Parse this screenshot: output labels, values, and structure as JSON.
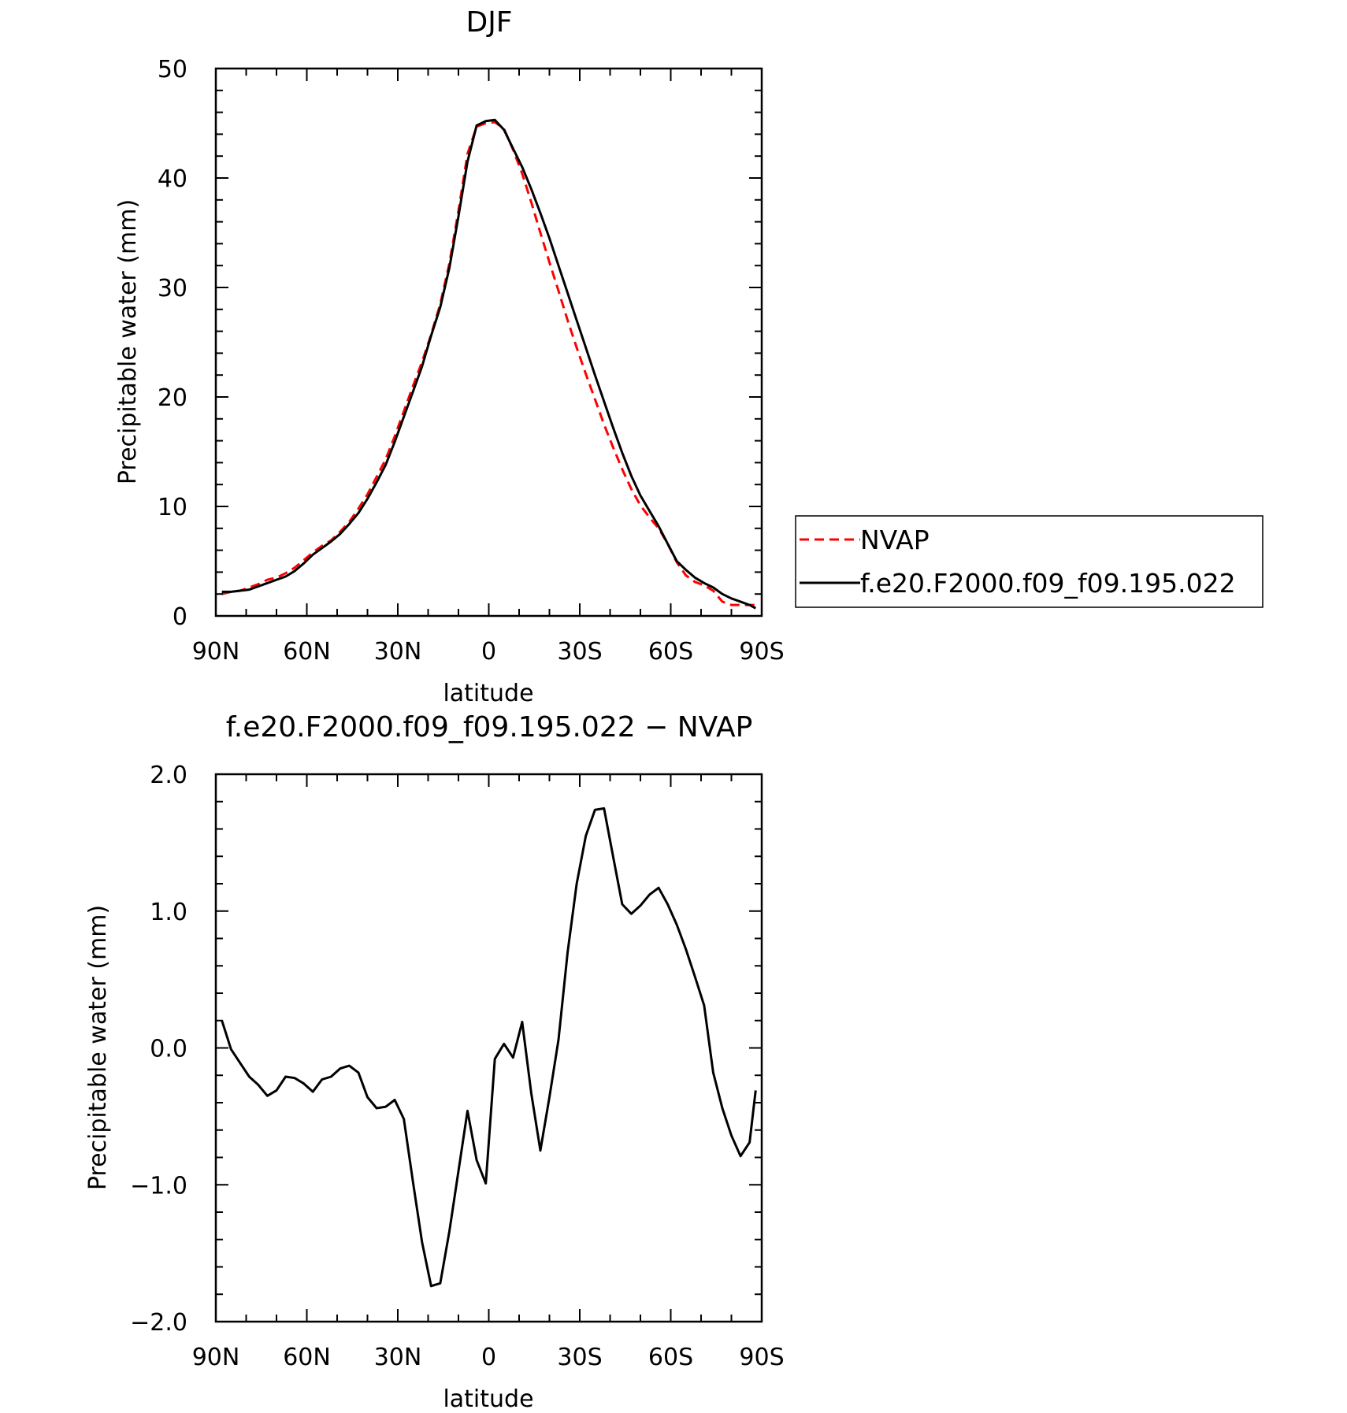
{
  "chart_data": [
    {
      "type": "line",
      "title": "DJF",
      "xlabel": "latitude",
      "ylabel": "Precipitable water (mm)",
      "xlim": [
        90,
        -90
      ],
      "ylim": [
        0,
        50
      ],
      "x_ticks": [
        {
          "value": 90,
          "label": "90N"
        },
        {
          "value": 60,
          "label": "60N"
        },
        {
          "value": 30,
          "label": "30N"
        },
        {
          "value": 0,
          "label": "0"
        },
        {
          "value": -30,
          "label": "30S"
        },
        {
          "value": -60,
          "label": "60S"
        },
        {
          "value": -90,
          "label": "90S"
        }
      ],
      "y_ticks": [
        {
          "value": 0,
          "label": "0"
        },
        {
          "value": 10,
          "label": "10"
        },
        {
          "value": 20,
          "label": "20"
        },
        {
          "value": 30,
          "label": "30"
        },
        {
          "value": 40,
          "label": "40"
        },
        {
          "value": 50,
          "label": "50"
        }
      ],
      "legend_position": "right",
      "series": [
        {
          "name": "NVAP",
          "color": "#ff0000",
          "dash": "dashed",
          "x": [
            88,
            85,
            82,
            79,
            76,
            73,
            70,
            67,
            64,
            61,
            58,
            55,
            52,
            49,
            46,
            43,
            40,
            37,
            34,
            31,
            28,
            25,
            22,
            19,
            16,
            13,
            10,
            7,
            4,
            1,
            -2,
            -5,
            -8,
            -11,
            -14,
            -17,
            -20,
            -23,
            -26,
            -29,
            -32,
            -35,
            -38,
            -41,
            -44,
            -47,
            -50,
            -53,
            -56,
            -59,
            -62,
            -65,
            -68,
            -71,
            -74,
            -77,
            -80,
            -83,
            -86,
            -88
          ],
          "y": [
            2.0,
            2.2,
            2.3,
            2.6,
            2.9,
            3.3,
            3.5,
            3.9,
            4.4,
            5.1,
            5.8,
            6.4,
            6.9,
            7.7,
            8.6,
            9.8,
            11.1,
            12.7,
            14.3,
            16.4,
            18.7,
            21.0,
            23.2,
            25.7,
            28.5,
            32.2,
            37.0,
            42.2,
            44.7,
            45.0,
            45.1,
            44.5,
            42.6,
            40.4,
            37.8,
            35.0,
            32.3,
            29.7,
            27.0,
            24.5,
            22.1,
            19.8,
            17.5,
            15.4,
            13.4,
            11.6,
            10.1,
            9.0,
            8.0,
            6.6,
            4.9,
            3.7,
            3.1,
            2.8,
            2.3,
            1.3,
            1.0,
            1.0,
            1.0,
            1.0
          ],
          "values": [
            2.0,
            2.2,
            2.3,
            2.6,
            2.9,
            3.3,
            3.5,
            3.9,
            4.4,
            5.1,
            5.8,
            6.4,
            6.9,
            7.7,
            8.6,
            9.8,
            11.1,
            12.7,
            14.3,
            16.4,
            18.7,
            21.0,
            23.2,
            25.7,
            28.5,
            32.2,
            37.0,
            42.2,
            44.7,
            45.0,
            45.1,
            44.5,
            42.6,
            40.4,
            37.8,
            35.0,
            32.3,
            29.7,
            27.0,
            24.5,
            22.1,
            19.8,
            17.5,
            15.4,
            13.4,
            11.6,
            10.1,
            9.0,
            8.0,
            6.6,
            4.9,
            3.7,
            3.1,
            2.8,
            2.3,
            1.3,
            1.0,
            1.0,
            1.0,
            1.0
          ]
        },
        {
          "name": "f.e20.F2000.f09_f09.195.022",
          "color": "#000000",
          "dash": "solid",
          "x": [
            88,
            85,
            82,
            79,
            76,
            73,
            70,
            67,
            64,
            61,
            58,
            55,
            52,
            49,
            46,
            43,
            40,
            37,
            34,
            31,
            28,
            25,
            22,
            19,
            16,
            13,
            10,
            7,
            4,
            1,
            -2,
            -5,
            -8,
            -11,
            -14,
            -17,
            -20,
            -23,
            -26,
            -29,
            -32,
            -35,
            -38,
            -41,
            -44,
            -47,
            -50,
            -53,
            -56,
            -59,
            -62,
            -65,
            -68,
            -71,
            -74,
            -77,
            -80,
            -83,
            -86,
            -88
          ],
          "y": [
            2.2,
            2.2,
            2.3,
            2.4,
            2.7,
            3.0,
            3.3,
            3.6,
            4.1,
            4.8,
            5.6,
            6.2,
            6.8,
            7.5,
            8.4,
            9.4,
            10.7,
            12.2,
            13.8,
            15.9,
            18.2,
            20.5,
            22.8,
            25.6,
            28.2,
            31.8,
            36.5,
            41.5,
            44.8,
            45.2,
            45.3,
            44.4,
            42.7,
            41.0,
            39.0,
            36.8,
            34.5,
            32.0,
            29.5,
            27.0,
            24.5,
            22.0,
            19.6,
            17.2,
            14.9,
            12.8,
            11.0,
            9.6,
            8.2,
            6.6,
            5.0,
            4.2,
            3.5,
            3.0,
            2.6,
            2.0,
            1.6,
            1.3,
            1.0,
            0.7
          ],
          "values": [
            2.2,
            2.2,
            2.3,
            2.4,
            2.7,
            3.0,
            3.3,
            3.6,
            4.1,
            4.8,
            5.6,
            6.2,
            6.8,
            7.5,
            8.4,
            9.4,
            10.7,
            12.2,
            13.8,
            15.9,
            18.2,
            20.5,
            22.8,
            25.6,
            28.2,
            31.8,
            36.5,
            41.5,
            44.8,
            45.2,
            45.3,
            44.4,
            42.7,
            41.0,
            39.0,
            36.8,
            34.5,
            32.0,
            29.5,
            27.0,
            24.5,
            22.0,
            19.6,
            17.2,
            14.9,
            12.8,
            11.0,
            9.6,
            8.2,
            6.6,
            5.0,
            4.2,
            3.5,
            3.0,
            2.6,
            2.0,
            1.6,
            1.3,
            1.0,
            0.7
          ]
        }
      ]
    },
    {
      "type": "line",
      "title": "f.e20.F2000.f09_f09.195.022 − NVAP",
      "xlabel": "latitude",
      "ylabel": "Precipitable water (mm)",
      "xlim": [
        90,
        -90
      ],
      "ylim": [
        -2.0,
        2.0
      ],
      "x_ticks": [
        {
          "value": 90,
          "label": "90N"
        },
        {
          "value": 60,
          "label": "60N"
        },
        {
          "value": 30,
          "label": "30N"
        },
        {
          "value": 0,
          "label": "0"
        },
        {
          "value": -30,
          "label": "30S"
        },
        {
          "value": -60,
          "label": "60S"
        },
        {
          "value": -90,
          "label": "90S"
        }
      ],
      "y_ticks": [
        {
          "value": -2.0,
          "label": "−2.0"
        },
        {
          "value": -1.0,
          "label": "−1.0"
        },
        {
          "value": 0.0,
          "label": "0.0"
        },
        {
          "value": 1.0,
          "label": "1.0"
        },
        {
          "value": 2.0,
          "label": "2.0"
        }
      ],
      "series": [
        {
          "color": "#000000",
          "dash": "solid",
          "x": [
            88,
            85,
            82,
            79,
            76,
            73,
            70,
            67,
            64,
            61,
            58,
            55,
            52,
            49,
            46,
            43,
            40,
            37,
            34,
            31,
            28,
            25,
            22,
            19,
            16,
            13,
            10,
            7,
            4,
            1,
            -2,
            -5,
            -8,
            -11,
            -14,
            -17,
            -20,
            -23,
            -26,
            -29,
            -32,
            -35,
            -38,
            -41,
            -44,
            -47,
            -50,
            -53,
            -56,
            -59,
            -62,
            -65,
            -68,
            -71,
            -74,
            -77,
            -80,
            -83,
            -86,
            -88
          ],
          "y": [
            0.2,
            -0.01,
            -0.11,
            -0.21,
            -0.27,
            -0.35,
            -0.31,
            -0.21,
            -0.22,
            -0.26,
            -0.32,
            -0.23,
            -0.21,
            -0.15,
            -0.13,
            -0.18,
            -0.36,
            -0.44,
            -0.43,
            -0.38,
            -0.52,
            -0.98,
            -1.42,
            -1.74,
            -1.72,
            -1.34,
            -0.9,
            -0.46,
            -0.82,
            -0.99,
            -0.08,
            0.03,
            -0.07,
            0.19,
            -0.33,
            -0.75,
            -0.36,
            0.06,
            0.7,
            1.2,
            1.55,
            1.74,
            1.75,
            1.4,
            1.05,
            0.98,
            1.04,
            1.12,
            1.17,
            1.05,
            0.9,
            0.72,
            0.52,
            0.31,
            -0.18,
            -0.44,
            -0.64,
            -0.79,
            -0.69,
            -0.31
          ],
          "values": [
            0.2,
            -0.01,
            -0.11,
            -0.21,
            -0.27,
            -0.35,
            -0.31,
            -0.21,
            -0.22,
            -0.26,
            -0.32,
            -0.23,
            -0.21,
            -0.15,
            -0.13,
            -0.18,
            -0.36,
            -0.44,
            -0.43,
            -0.38,
            -0.52,
            -0.98,
            -1.42,
            -1.74,
            -1.72,
            -1.34,
            -0.9,
            -0.46,
            -0.82,
            -0.99,
            -0.08,
            0.03,
            -0.07,
            0.19,
            -0.33,
            -0.75,
            -0.36,
            0.06,
            0.7,
            1.2,
            1.55,
            1.74,
            1.75,
            1.4,
            1.05,
            0.98,
            1.04,
            1.12,
            1.17,
            1.05,
            0.9,
            0.72,
            0.52,
            0.31,
            -0.18,
            -0.44,
            -0.64,
            -0.79,
            -0.69,
            -0.31
          ]
        }
      ]
    }
  ]
}
